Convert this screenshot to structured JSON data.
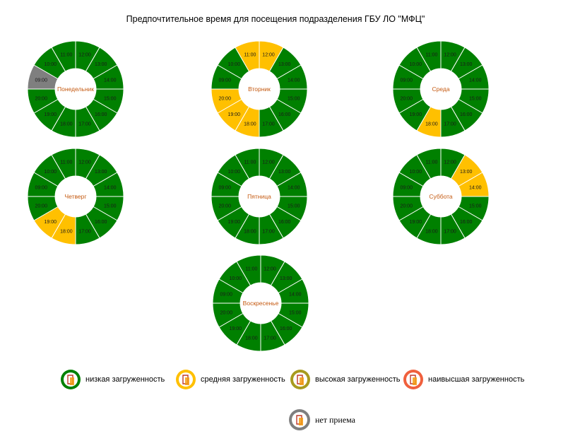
{
  "title": "Предпочтительное время для посещения подразделения ГБУ ЛО \"МФЦ\"",
  "colors": {
    "low": "#008000",
    "medium": "#ffc000",
    "high": "#a89a1e",
    "highest": "#f0603d",
    "closed": "#7f7f7f",
    "day_label": "#c55a11"
  },
  "chart_data": [
    {
      "type": "pie",
      "day": "Понедельник",
      "hours": [
        "12:00",
        "13:00",
        "14:00",
        "15:00",
        "16:00",
        "17:00",
        "18:00",
        "19:00",
        "20:00",
        "09:00",
        "10:00",
        "11:00"
      ],
      "load": [
        "low",
        "low",
        "low",
        "low",
        "low",
        "low",
        "low",
        "low",
        "low",
        "closed",
        "low",
        "low"
      ]
    },
    {
      "type": "pie",
      "day": "Вторник",
      "hours": [
        "12:00",
        "13:00",
        "14:00",
        "15:00",
        "16:00",
        "17:00",
        "18:00",
        "19:00",
        "20:00",
        "09:00",
        "10:00",
        "11:00"
      ],
      "load": [
        "medium",
        "low",
        "low",
        "low",
        "low",
        "low",
        "medium",
        "medium",
        "medium",
        "low",
        "low",
        "medium"
      ]
    },
    {
      "type": "pie",
      "day": "Среда",
      "hours": [
        "12:00",
        "13:00",
        "14:00",
        "15:00",
        "16:00",
        "17:00",
        "18:00",
        "19:00",
        "20:00",
        "09:00",
        "10:00",
        "11:00"
      ],
      "load": [
        "low",
        "low",
        "low",
        "low",
        "low",
        "low",
        "medium",
        "low",
        "low",
        "low",
        "low",
        "low"
      ]
    },
    {
      "type": "pie",
      "day": "Четверг",
      "hours": [
        "12:00",
        "13:00",
        "14:00",
        "15:00",
        "16:00",
        "17:00",
        "18:00",
        "19:00",
        "20:00",
        "09:00",
        "10:00",
        "11:00"
      ],
      "load": [
        "low",
        "low",
        "low",
        "low",
        "low",
        "low",
        "medium",
        "medium",
        "low",
        "low",
        "low",
        "low"
      ]
    },
    {
      "type": "pie",
      "day": "Пятница",
      "hours": [
        "12:00",
        "13:00",
        "14:00",
        "15:00",
        "16:00",
        "17:00",
        "18:00",
        "19:00",
        "20:00",
        "09:00",
        "10:00",
        "11:00"
      ],
      "load": [
        "low",
        "low",
        "low",
        "low",
        "low",
        "low",
        "low",
        "low",
        "low",
        "low",
        "low",
        "low"
      ]
    },
    {
      "type": "pie",
      "day": "Суббота",
      "hours": [
        "12:00",
        "13:00",
        "14:00",
        "15:00",
        "16:00",
        "17:00",
        "18:00",
        "19:00",
        "20:00",
        "09:00",
        "10:00",
        "11:00"
      ],
      "load": [
        "low",
        "medium",
        "medium",
        "low",
        "low",
        "low",
        "low",
        "low",
        "low",
        "low",
        "low",
        "low"
      ]
    },
    {
      "type": "pie",
      "day": "Воскресенье",
      "hours": [
        "12:00",
        "13:00",
        "14:00",
        "15:00",
        "16:00",
        "17:00",
        "18:00",
        "19:00",
        "20:00",
        "09:00",
        "10:00",
        "11:00"
      ],
      "load": [
        "low",
        "low",
        "low",
        "low",
        "low",
        "low",
        "low",
        "low",
        "low",
        "low",
        "low",
        "low"
      ]
    }
  ],
  "legend": {
    "low": "низкая загруженность",
    "medium": "средняя загруженность",
    "high": "высокая загруженность",
    "highest": "наивысшая загруженность",
    "closed": "нет приема"
  }
}
